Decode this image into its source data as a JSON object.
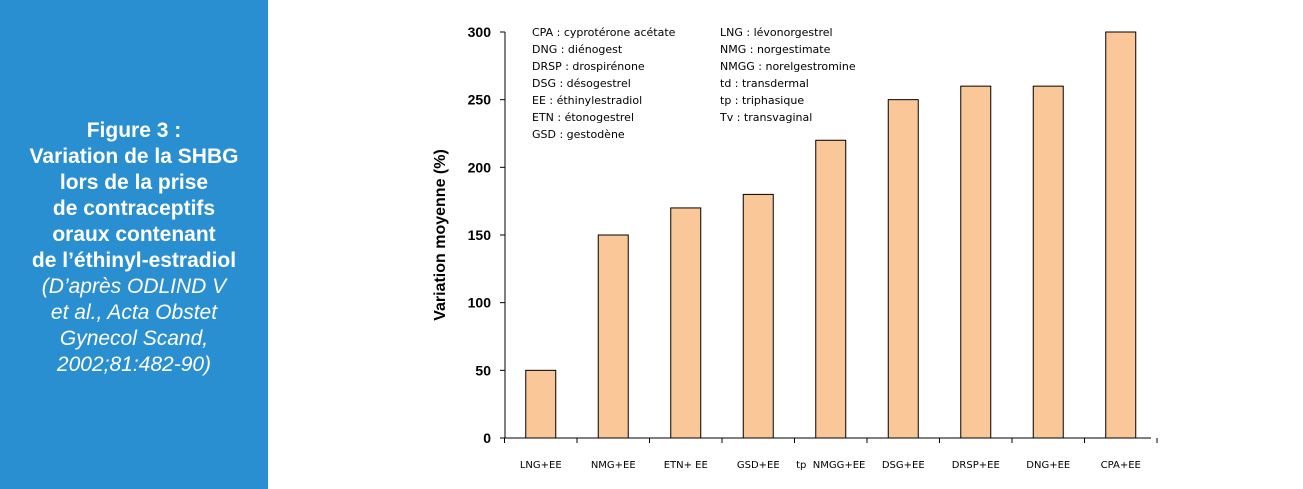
{
  "figure": {
    "caption_lines": [
      "Figure 3 :",
      "Variation de la SHBG",
      "lors de la prise",
      "de contraceptifs",
      "oraux contenant",
      "de l’éthinyl-estradiol"
    ],
    "source_lines": [
      "(D’après ODLIND V",
      "et al., Acta Obstet",
      "Gynecol Scand,",
      "2002;81:482-90)"
    ],
    "panel_color": "#2a8fd0"
  },
  "chart_data": {
    "type": "bar",
    "categories": [
      "LNG+EE",
      "NMG+EE",
      "ETN+ EE",
      "GSD+EE",
      "tp  NMGG+EE",
      "DSG+EE",
      "DRSP+EE",
      "DNG+EE",
      "CPA+EE"
    ],
    "values": [
      50,
      150,
      170,
      180,
      220,
      250,
      260,
      260,
      300
    ],
    "ylabel": "Variation moyenne (%)",
    "xlabel": "",
    "ylim": [
      0,
      300
    ],
    "yticks": [
      "0",
      "50",
      "100",
      "150",
      "200",
      "250",
      "300"
    ],
    "bar_color": "#fac898",
    "grid": false,
    "abbreviations_left": [
      "CPA : cyprotérone acétate",
      "DNG : diénogest",
      "DRSP : drospirénone",
      "DSG : désogestrel",
      "EE : éthinylestradiol",
      "ETN : étonogestrel",
      "GSD : gestodène"
    ],
    "abbreviations_right": [
      "LNG : lévonorgestrel",
      "NMG : norgestimate",
      "NMGG : norelgestromine",
      "td : transdermal",
      "tp : triphasique",
      "Tv : transvaginal"
    ]
  }
}
